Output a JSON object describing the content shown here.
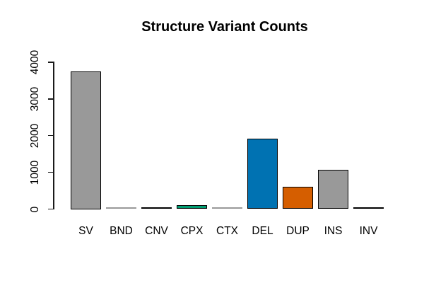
{
  "chart_data": {
    "type": "bar",
    "title": "Structure Variant Counts",
    "categories": [
      "SV",
      "BND",
      "CNV",
      "CPX",
      "CTX",
      "DEL",
      "DUP",
      "INS",
      "INV"
    ],
    "values": [
      3750,
      5,
      30,
      60,
      5,
      1920,
      600,
      1070,
      20
    ],
    "bar_colors": [
      "#999999",
      "#999999",
      "#000000",
      "#009E73",
      "#999999",
      "#0072B2",
      "#D55E00",
      "#999999",
      "#000000"
    ],
    "bar_border_color": "#000000",
    "xlabel": "",
    "ylabel": "",
    "ylim": [
      0,
      4000
    ],
    "yticks": [
      0,
      1000,
      2000,
      3000,
      4000
    ],
    "ytick_labels": [
      "0",
      "1000",
      "2000",
      "3000",
      "4000"
    ],
    "grid": false,
    "legend_position": "none",
    "axis_color": "#000000",
    "background_color": "#ffffff",
    "title_color": "#000000"
  }
}
